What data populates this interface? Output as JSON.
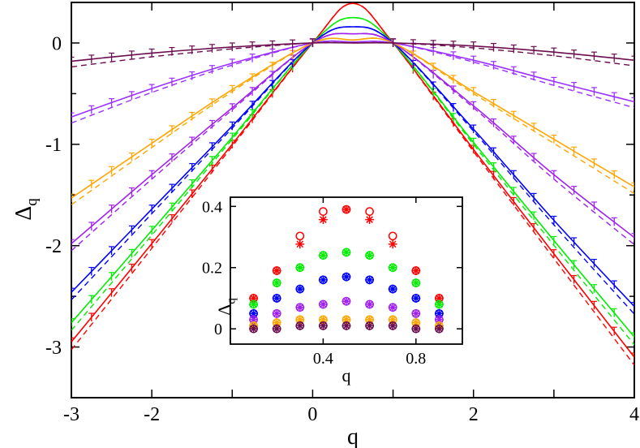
{
  "chart_data": [
    {
      "type": "line",
      "title": "",
      "xlabel": "q",
      "ylabel": "Δ",
      "ylabel_subscript": "q",
      "xlim": [
        -3,
        4
      ],
      "ylim": [
        -3.5,
        0.4
      ],
      "x_ticks": [
        -3,
        -2,
        -1,
        0,
        1,
        2,
        3,
        4
      ],
      "x_tick_labels": [
        "-3",
        "-2",
        "",
        "0",
        "",
        "2",
        "",
        "4"
      ],
      "y_ticks": [
        -3,
        -2.5,
        -2,
        -1.5,
        -1,
        -0.5,
        0
      ],
      "y_tick_labels": [
        "-3",
        "",
        "-2",
        "",
        "-1",
        "",
        "0"
      ],
      "grid": false,
      "legend": "none",
      "series": [
        {
          "name": "red",
          "color": "#ff0000",
          "x": [
            -3,
            -2,
            -1,
            0,
            0.5,
            1,
            2,
            3,
            4
          ],
          "values": [
            -2.95,
            -1.98,
            -1.0,
            0.0,
            0.39,
            0.0,
            -1.05,
            -2.08,
            -3.1
          ]
        },
        {
          "name": "green",
          "color": "#00ee00",
          "x": [
            -3,
            -2,
            -1,
            0,
            0.5,
            1,
            2,
            3,
            4
          ],
          "values": [
            -2.76,
            -1.85,
            -0.93,
            0.0,
            0.25,
            0.0,
            -0.98,
            -1.95,
            -2.9
          ]
        },
        {
          "name": "blue",
          "color": "#0000ff",
          "x": [
            -3,
            -2,
            -1,
            0,
            0.5,
            1,
            2,
            3,
            4
          ],
          "values": [
            -2.46,
            -1.64,
            -0.82,
            0.0,
            0.16,
            0.0,
            -0.85,
            -1.75,
            -2.6
          ]
        },
        {
          "name": "purple-upper",
          "color": "#a020f0",
          "x": [
            -3,
            -2,
            -1,
            0,
            0.5,
            1,
            2,
            3,
            4
          ],
          "values": [
            -1.98,
            -1.3,
            -0.64,
            0.0,
            0.09,
            0.0,
            -0.62,
            -1.3,
            -1.92
          ]
        },
        {
          "name": "orange",
          "color": "#ffa500",
          "x": [
            -3,
            -2,
            -1,
            0,
            0.5,
            1,
            2,
            3,
            4
          ],
          "values": [
            -1.53,
            -0.99,
            -0.46,
            0.0,
            0.03,
            0.0,
            -0.48,
            -0.95,
            -1.42
          ]
        },
        {
          "name": "purple-lower",
          "color": "#9b30ff",
          "x": [
            -3,
            -2,
            -1,
            0,
            0.5,
            1,
            2,
            3,
            4
          ],
          "values": [
            -0.73,
            -0.45,
            -0.2,
            0.0,
            0.01,
            0.0,
            -0.17,
            -0.38,
            -0.58
          ]
        },
        {
          "name": "maroon",
          "color": "#6b0d4f",
          "x": [
            -3,
            -2,
            -1,
            0,
            0.5,
            1,
            2,
            3,
            4
          ],
          "values": [
            -0.18,
            -0.1,
            -0.04,
            0.0,
            0.0,
            0.0,
            -0.03,
            -0.09,
            -0.17
          ]
        }
      ]
    },
    {
      "type": "scatter",
      "title": "",
      "xlabel": "q",
      "ylabel": "Δ",
      "ylabel_subscript": "q",
      "xlim": [
        0,
        1
      ],
      "ylim": [
        -0.05,
        0.43
      ],
      "x_ticks": [
        0.4,
        0.8
      ],
      "x_tick_labels": [
        "0.4",
        "0.8"
      ],
      "y_ticks": [
        0,
        0.2,
        0.4
      ],
      "y_tick_labels": [
        "0",
        "0.2",
        "0.4"
      ],
      "legend": "none",
      "series": [
        {
          "name": "red",
          "color": "#ff0000",
          "x": [
            0.1,
            0.2,
            0.3,
            0.4,
            0.5,
            0.6,
            0.7,
            0.8,
            0.9
          ],
          "values": [
            0.1,
            0.19,
            0.29,
            0.37,
            0.39,
            0.37,
            0.29,
            0.19,
            0.1
          ]
        },
        {
          "name": "green",
          "color": "#00ee00",
          "x": [
            0.1,
            0.2,
            0.3,
            0.4,
            0.5,
            0.6,
            0.7,
            0.8,
            0.9
          ],
          "values": [
            0.08,
            0.15,
            0.2,
            0.24,
            0.25,
            0.24,
            0.2,
            0.15,
            0.08
          ]
        },
        {
          "name": "blue",
          "color": "#0000ff",
          "x": [
            0.1,
            0.2,
            0.3,
            0.4,
            0.5,
            0.6,
            0.7,
            0.8,
            0.9
          ],
          "values": [
            0.05,
            0.1,
            0.13,
            0.16,
            0.17,
            0.16,
            0.13,
            0.1,
            0.05
          ]
        },
        {
          "name": "purple-upper",
          "color": "#a020f0",
          "x": [
            0.1,
            0.2,
            0.3,
            0.4,
            0.5,
            0.6,
            0.7,
            0.8,
            0.9
          ],
          "values": [
            0.03,
            0.05,
            0.07,
            0.08,
            0.09,
            0.08,
            0.07,
            0.05,
            0.03
          ]
        },
        {
          "name": "orange",
          "color": "#ffa500",
          "x": [
            0.1,
            0.2,
            0.3,
            0.4,
            0.5,
            0.6,
            0.7,
            0.8,
            0.9
          ],
          "values": [
            0.01,
            0.02,
            0.03,
            0.03,
            0.03,
            0.03,
            0.03,
            0.02,
            0.01
          ]
        },
        {
          "name": "maroon",
          "color": "#6b0d4f",
          "x": [
            0.1,
            0.2,
            0.3,
            0.4,
            0.5,
            0.6,
            0.7,
            0.8,
            0.9
          ],
          "values": [
            0.0,
            0.0,
            0.01,
            0.01,
            0.01,
            0.01,
            0.01,
            0.0,
            0.0
          ]
        }
      ]
    }
  ]
}
